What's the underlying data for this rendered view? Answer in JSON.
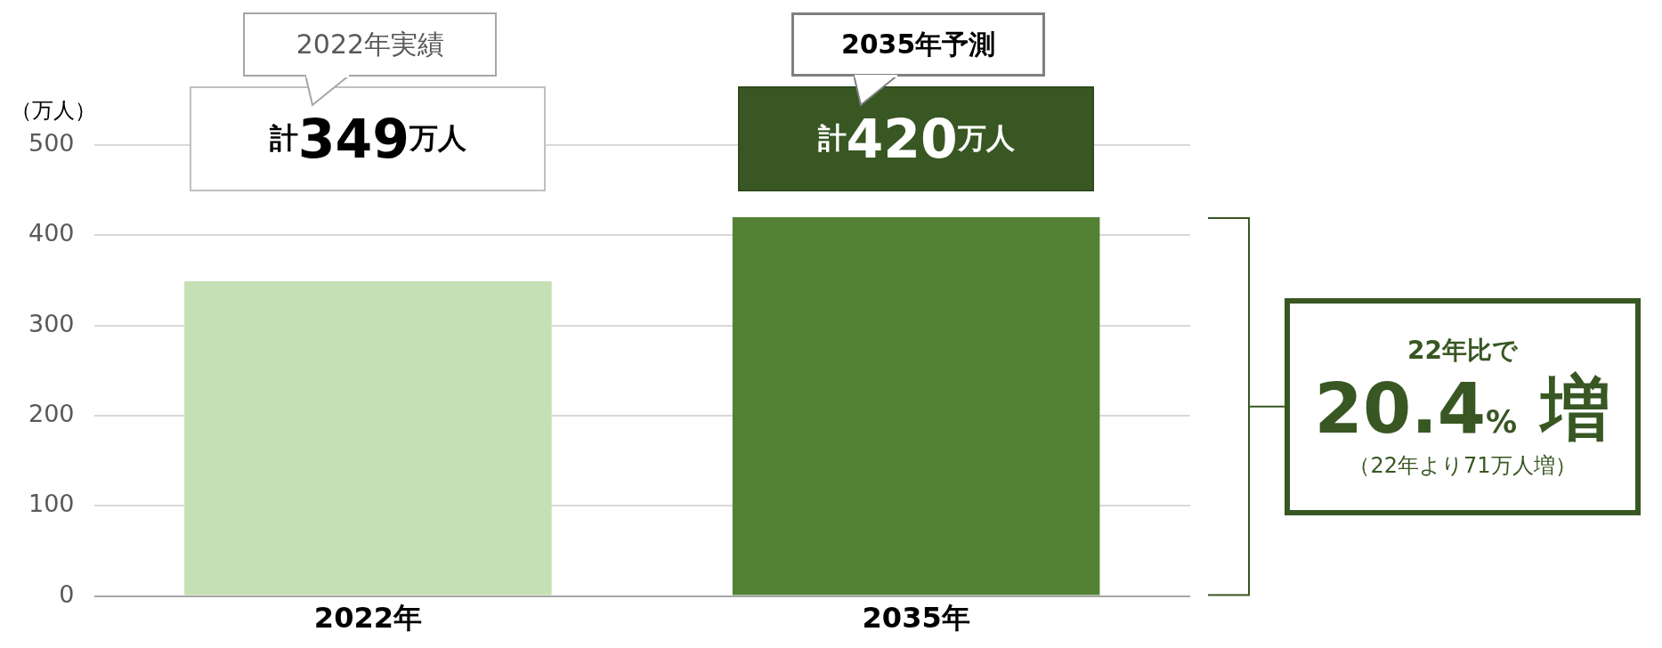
{
  "chart_data": {
    "type": "bar",
    "ylabel": "（万人）",
    "categories": [
      "2022年",
      "2035年"
    ],
    "series": [
      {
        "colors": [
          "#c5e0b4",
          "#548235"
        ],
        "values": [
          349,
          420
        ],
        "value_labels": [
          "計349万人",
          "計420万人"
        ]
      }
    ],
    "ylim": [
      0,
      500
    ],
    "yticks": [
      0,
      100,
      200,
      300,
      400,
      500
    ],
    "grid": "y",
    "legend": false,
    "annotations": [
      "2022年実績",
      "2035年予測",
      "22年比で",
      "20.4% 増",
      "（22年より71万人増）"
    ]
  }
}
